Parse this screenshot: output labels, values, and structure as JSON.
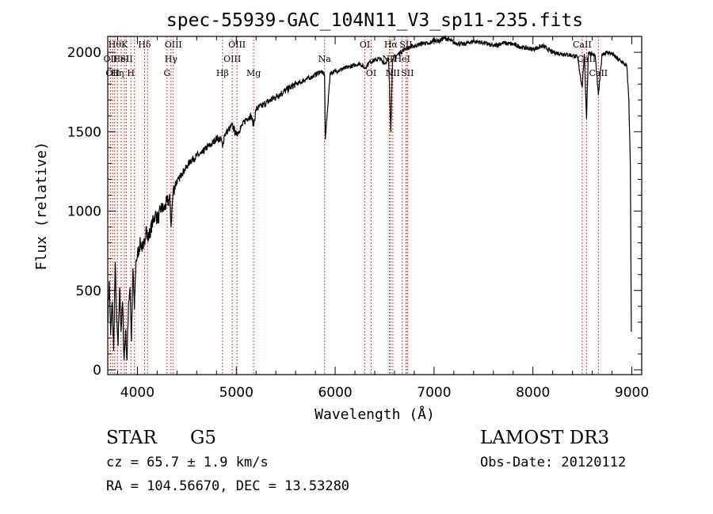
{
  "chart_data": {
    "type": "line",
    "title": "spec-55939-GAC_104N11_V3_sp11-235.fits",
    "xlabel": "Wavelength (Å)",
    "ylabel": "Flux (relative)",
    "xlim": [
      3700,
      9100
    ],
    "ylim": [
      -30,
      2100
    ],
    "xticks": [
      {
        "value": 4000,
        "label": "4000"
      },
      {
        "value": 5000,
        "label": "5000"
      },
      {
        "value": 6000,
        "label": "6000"
      },
      {
        "value": 7000,
        "label": "7000"
      },
      {
        "value": 8000,
        "label": "8000"
      },
      {
        "value": 9000,
        "label": "9000"
      }
    ],
    "yticks": [
      {
        "value": 0,
        "label": "0"
      },
      {
        "value": 500,
        "label": "500"
      },
      {
        "value": 1000,
        "label": "1000"
      },
      {
        "value": 1500,
        "label": "1500"
      },
      {
        "value": 2000,
        "label": "2000"
      }
    ],
    "series": [
      {
        "name": "spectrum",
        "x": [
          3700,
          3715,
          3730,
          3745,
          3760,
          3775,
          3790,
          3805,
          3820,
          3835,
          3850,
          3865,
          3880,
          3895,
          3910,
          3925,
          3940,
          3955,
          3970,
          3985,
          4000,
          4030,
          4060,
          4090,
          4101,
          4120,
          4150,
          4180,
          4210,
          4240,
          4270,
          4300,
          4330,
          4340,
          4360,
          4390,
          4420,
          4450,
          4480,
          4510,
          4540,
          4570,
          4600,
          4650,
          4700,
          4750,
          4800,
          4850,
          4861,
          4880,
          4920,
          4960,
          5000,
          5050,
          5100,
          5150,
          5175,
          5200,
          5250,
          5300,
          5350,
          5400,
          5450,
          5500,
          5550,
          5600,
          5650,
          5700,
          5750,
          5800,
          5850,
          5893,
          5900,
          5950,
          6000,
          6050,
          6100,
          6150,
          6200,
          6250,
          6300,
          6350,
          6400,
          6450,
          6500,
          6540,
          6563,
          6580,
          6620,
          6660,
          6700,
          6750,
          6800,
          6850,
          6900,
          6950,
          7000,
          7050,
          7100,
          7150,
          7200,
          7300,
          7400,
          7500,
          7600,
          7700,
          7800,
          7900,
          8000,
          8100,
          8200,
          8300,
          8400,
          8450,
          8498,
          8520,
          8542,
          8560,
          8600,
          8630,
          8662,
          8700,
          8750,
          8800,
          8850,
          8900,
          8950,
          8970,
          8985,
          8995
        ],
        "y": [
          300,
          560,
          220,
          430,
          120,
          680,
          300,
          150,
          520,
          240,
          430,
          60,
          250,
          60,
          420,
          520,
          180,
          640,
          380,
          680,
          720,
          800,
          760,
          900,
          820,
          850,
          920,
          980,
          950,
          1020,
          1010,
          1060,
          1070,
          900,
          1120,
          1180,
          1200,
          1240,
          1260,
          1290,
          1320,
          1330,
          1350,
          1360,
          1400,
          1420,
          1460,
          1450,
          1400,
          1480,
          1510,
          1540,
          1480,
          1530,
          1580,
          1600,
          1540,
          1640,
          1660,
          1680,
          1700,
          1720,
          1740,
          1760,
          1780,
          1800,
          1810,
          1830,
          1840,
          1860,
          1880,
          1860,
          1450,
          1870,
          1880,
          1890,
          1900,
          1910,
          1920,
          1930,
          1900,
          1940,
          1950,
          1960,
          1930,
          1960,
          1500,
          1960,
          1980,
          2000,
          2020,
          2030,
          2040,
          2050,
          2060,
          2050,
          2080,
          2070,
          2090,
          2080,
          2060,
          2050,
          2070,
          2060,
          2040,
          2060,
          2050,
          2030,
          2020,
          2040,
          2000,
          1990,
          1980,
          1970,
          1780,
          1990,
          1580,
          2000,
          1990,
          1980,
          1730,
          1990,
          2000,
          1990,
          1960,
          1940,
          1910,
          1700,
          1300,
          240
        ]
      }
    ],
    "lines": [
      {
        "x": 3727,
        "labels": [
          "OII"
        ],
        "rows": [
          2
        ]
      },
      {
        "x": 3750,
        "labels": [
          "OII"
        ],
        "rows": [
          3
        ]
      },
      {
        "x": 3771,
        "labels": [
          "Hθ"
        ],
        "rows": [
          1
        ]
      },
      {
        "x": 3798,
        "labels": [
          "Hη"
        ],
        "rows": [
          3
        ]
      },
      {
        "x": 3835,
        "labels": [
          "HeI"
        ],
        "rows": [
          2
        ]
      },
      {
        "x": 3869,
        "labels": [
          "K"
        ],
        "rows": [
          1
        ]
      },
      {
        "x": 3889,
        "labels": [
          "SII"
        ],
        "rows": [
          2
        ]
      },
      {
        "x": 3934,
        "labels": [
          "H"
        ],
        "rows": [
          3
        ]
      },
      {
        "x": 3970,
        "labels": [],
        "rows": []
      },
      {
        "x": 4072,
        "labels": [
          "Hδ"
        ],
        "rows": [
          1
        ]
      },
      {
        "x": 4102,
        "labels": [],
        "rows": []
      },
      {
        "x": 4300,
        "labels": [
          "G"
        ],
        "rows": [
          3
        ]
      },
      {
        "x": 4340,
        "labels": [
          "Hγ"
        ],
        "rows": [
          2
        ]
      },
      {
        "x": 4363,
        "labels": [
          "OIII"
        ],
        "rows": [
          1
        ]
      },
      {
        "x": 4861,
        "labels": [
          "Hβ"
        ],
        "rows": [
          3
        ]
      },
      {
        "x": 4959,
        "labels": [
          "OIII"
        ],
        "rows": [
          2
        ]
      },
      {
        "x": 5007,
        "labels": [
          "OIII"
        ],
        "rows": [
          1
        ]
      },
      {
        "x": 5175,
        "labels": [
          "Mg"
        ],
        "rows": [
          3
        ]
      },
      {
        "x": 5893,
        "labels": [
          "Na"
        ],
        "rows": [
          2
        ]
      },
      {
        "x": 6300,
        "labels": [
          "OI"
        ],
        "rows": [
          1
        ]
      },
      {
        "x": 6364,
        "labels": [
          "OI"
        ],
        "rows": [
          3
        ]
      },
      {
        "x": 6548,
        "labels": [
          "NII"
        ],
        "rows": [
          2
        ]
      },
      {
        "x": 6563,
        "labels": [
          "Hα"
        ],
        "rows": [
          1
        ]
      },
      {
        "x": 6583,
        "labels": [
          "NII"
        ],
        "rows": [
          3
        ]
      },
      {
        "x": 6678,
        "labels": [
          "HeI"
        ],
        "rows": [
          2
        ]
      },
      {
        "x": 6716,
        "labels": [
          "SII"
        ],
        "rows": [
          1
        ]
      },
      {
        "x": 6731,
        "labels": [
          "SII"
        ],
        "rows": [
          3
        ]
      },
      {
        "x": 8498,
        "labels": [
          "CaII"
        ],
        "rows": [
          1
        ]
      },
      {
        "x": 8542,
        "labels": [
          "CaII"
        ],
        "rows": [
          2
        ]
      },
      {
        "x": 8662,
        "labels": [
          "CaII"
        ],
        "rows": [
          3
        ]
      }
    ]
  },
  "info": {
    "object_class": "STAR",
    "subclass": "G5",
    "survey": "LAMOST DR3",
    "redshift": "cz = 65.7 ± 1.9 km/s",
    "obs_date": "Obs-Date: 20120112",
    "coords": "RA = 104.56670, DEC =  13.53280"
  }
}
